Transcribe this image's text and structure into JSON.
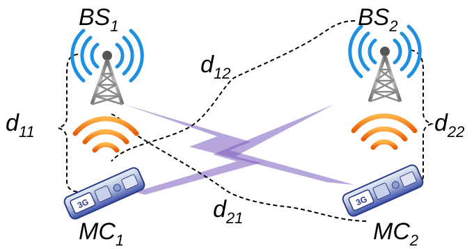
{
  "diagram": {
    "nodes": {
      "bs1": {
        "base": "BS",
        "sub": "1",
        "icon": "cell-tower-icon"
      },
      "bs2": {
        "base": "BS",
        "sub": "2",
        "icon": "cell-tower-icon"
      },
      "mc1": {
        "base": "MC",
        "sub": "1",
        "icon": "usb-modem-icon"
      },
      "mc2": {
        "base": "MC",
        "sub": "2",
        "icon": "usb-modem-icon"
      }
    },
    "distances": {
      "d11": {
        "base": "d",
        "sub": "11"
      },
      "d12": {
        "base": "d",
        "sub": "12"
      },
      "d21": {
        "base": "d",
        "sub": "21"
      },
      "d22": {
        "base": "d",
        "sub": "22"
      }
    },
    "colors": {
      "tower_waves": "#1f8fe0",
      "tower_body": "#8a8a8a",
      "signal_waves": "#f07a1a",
      "interference": "#7b5cbf",
      "device": "#3a4fa8",
      "dashed_line": "#000000"
    }
  }
}
